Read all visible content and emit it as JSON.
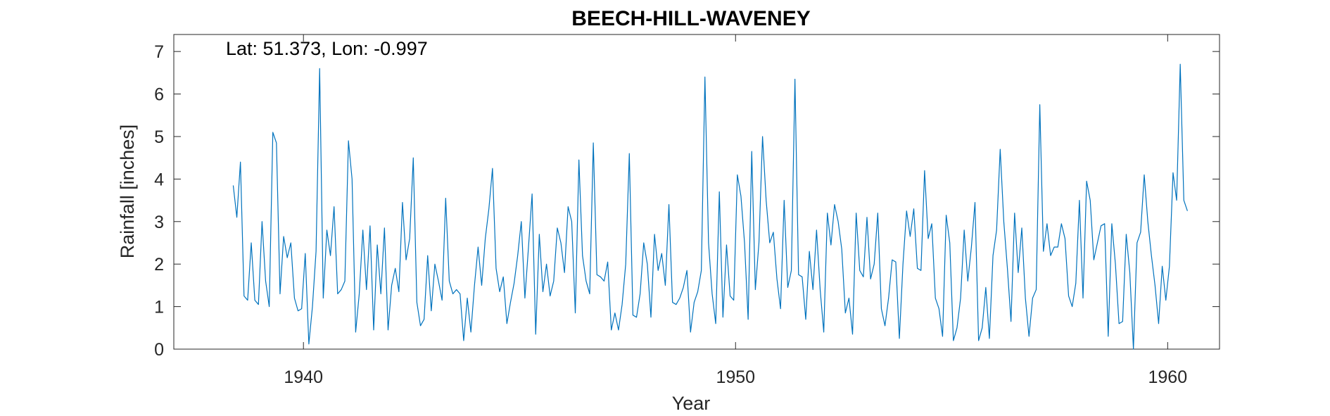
{
  "chart_data": {
    "type": "line",
    "title": "BEECH-HILL-WAVENEY",
    "annotation": "Lat: 51.373, Lon: -0.997",
    "xlabel": "Year",
    "ylabel": "Rainfall [inches]",
    "xlim": [
      1937,
      1961.2
    ],
    "ylim": [
      0,
      7.4
    ],
    "x_ticks": [
      1940,
      1950,
      1960
    ],
    "y_ticks": [
      0,
      1,
      2,
      3,
      4,
      5,
      6,
      7
    ],
    "grid": false,
    "line_color": "#0072BD",
    "series": [
      {
        "x_start": 1938.375,
        "x_step": 0.08333,
        "values": [
          3.85,
          3.1,
          4.4,
          1.25,
          1.15,
          2.5,
          1.15,
          1.05,
          3.0,
          1.6,
          1.0,
          5.1,
          4.85,
          1.3,
          2.65,
          2.15,
          2.5,
          1.2,
          0.9,
          0.95,
          2.25,
          0.12,
          1.0,
          2.3,
          6.6,
          1.2,
          2.8,
          2.2,
          3.35,
          1.3,
          1.4,
          1.6,
          4.9,
          4.0,
          0.4,
          1.3,
          2.8,
          1.4,
          2.9,
          0.45,
          2.45,
          1.3,
          2.85,
          0.45,
          1.5,
          1.9,
          1.35,
          3.45,
          2.1,
          2.6,
          4.5,
          1.1,
          0.55,
          0.7,
          2.2,
          0.9,
          2.0,
          1.6,
          1.15,
          3.55,
          1.6,
          1.3,
          1.4,
          1.3,
          0.2,
          1.2,
          0.4,
          1.5,
          2.4,
          1.5,
          2.6,
          3.3,
          4.25,
          1.9,
          1.35,
          1.7,
          0.6,
          1.1,
          1.55,
          2.2,
          3.0,
          1.2,
          2.4,
          3.65,
          0.35,
          2.7,
          1.35,
          2.0,
          1.25,
          1.6,
          2.85,
          2.5,
          1.8,
          3.35,
          3.0,
          0.85,
          4.45,
          2.2,
          1.6,
          1.3,
          4.85,
          1.75,
          1.7,
          1.6,
          2.05,
          0.45,
          0.85,
          0.45,
          1.05,
          2.0,
          4.6,
          0.8,
          0.75,
          1.3,
          2.5,
          2.0,
          0.75,
          2.7,
          1.85,
          2.25,
          1.5,
          3.4,
          1.1,
          1.05,
          1.2,
          1.45,
          1.85,
          0.4,
          1.1,
          1.35,
          1.85,
          6.4,
          2.5,
          1.3,
          0.6,
          3.7,
          0.75,
          2.45,
          1.25,
          1.15,
          4.1,
          3.6,
          2.5,
          0.7,
          4.65,
          1.4,
          2.5,
          5.0,
          3.5,
          2.5,
          2.75,
          1.65,
          0.95,
          3.5,
          1.45,
          1.85,
          6.35,
          1.75,
          1.7,
          0.7,
          2.3,
          1.4,
          2.8,
          1.4,
          0.4,
          3.2,
          2.45,
          3.4,
          3.0,
          2.35,
          0.85,
          1.2,
          0.35,
          3.2,
          1.85,
          1.7,
          3.1,
          1.65,
          2.0,
          3.2,
          0.95,
          0.55,
          1.2,
          2.1,
          2.05,
          0.25,
          2.0,
          3.25,
          2.65,
          3.3,
          1.9,
          1.85,
          4.2,
          2.6,
          2.95,
          1.2,
          0.95,
          0.3,
          3.15,
          2.5,
          0.2,
          0.5,
          1.2,
          2.8,
          1.6,
          2.4,
          3.45,
          0.2,
          0.5,
          1.45,
          0.25,
          2.2,
          2.8,
          4.7,
          3.0,
          1.9,
          0.65,
          3.2,
          1.8,
          2.85,
          1.2,
          0.3,
          1.2,
          1.4,
          5.75,
          2.3,
          2.95,
          2.2,
          2.4,
          2.4,
          2.95,
          2.6,
          1.25,
          1.0,
          1.55,
          3.5,
          1.2,
          3.95,
          3.5,
          2.1,
          2.5,
          2.9,
          2.95,
          0.3,
          2.95,
          2.0,
          0.6,
          0.65,
          2.7,
          1.8,
          0.0,
          2.5,
          2.75,
          4.1,
          3.0,
          2.2,
          1.5,
          0.6,
          1.95,
          1.15,
          1.95,
          4.15,
          3.5,
          6.7,
          3.5,
          3.25
        ]
      }
    ]
  }
}
